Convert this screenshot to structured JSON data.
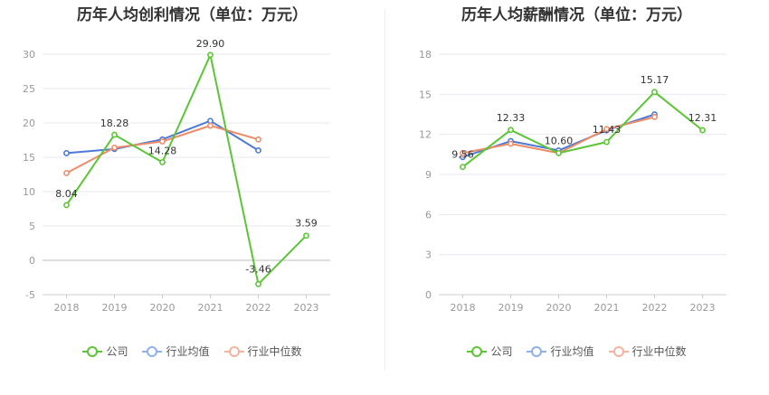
{
  "chart_data": [
    {
      "type": "line",
      "title": "历年人均创利情况（单位：万元）",
      "categories": [
        "2018",
        "2019",
        "2020",
        "2021",
        "2022",
        "2023"
      ],
      "ylim": [
        -5,
        30
      ],
      "yticks": [
        -5,
        0,
        5,
        10,
        15,
        20,
        25,
        30
      ],
      "grid": true,
      "legend": "bottom",
      "series": [
        {
          "name": "公司",
          "color": "#5cc535",
          "values": [
            8.04,
            18.28,
            14.28,
            29.9,
            -3.46,
            3.59
          ],
          "labels": [
            "8.04",
            "18.28",
            "14.28",
            "29.90",
            "-3.46",
            "3.59"
          ]
        },
        {
          "name": "行业均值",
          "color": "#4b7bd6",
          "values": [
            15.6,
            16.2,
            17.6,
            20.3,
            16.0,
            null
          ]
        },
        {
          "name": "行业中位数",
          "color": "#ef8c68",
          "values": [
            12.7,
            16.4,
            17.3,
            19.6,
            17.6,
            null
          ]
        }
      ]
    },
    {
      "type": "line",
      "title": "历年人均薪酬情况（单位：万元）",
      "categories": [
        "2018",
        "2019",
        "2020",
        "2021",
        "2022",
        "2023"
      ],
      "ylim": [
        0,
        18
      ],
      "yticks": [
        0,
        3,
        6,
        9,
        12,
        15,
        18
      ],
      "grid": true,
      "legend": "bottom",
      "series": [
        {
          "name": "公司",
          "color": "#5cc535",
          "values": [
            9.56,
            12.33,
            10.6,
            11.43,
            15.17,
            12.31
          ],
          "labels": [
            "9.56",
            "12.33",
            "10.60",
            "11.43",
            "15.17",
            "12.31"
          ]
        },
        {
          "name": "行业均值",
          "color": "#4b7bd6",
          "values": [
            10.3,
            11.5,
            10.8,
            12.3,
            13.5,
            null
          ]
        },
        {
          "name": "行业中位数",
          "color": "#ef8c68",
          "values": [
            10.6,
            11.3,
            10.6,
            12.4,
            13.3,
            null
          ]
        }
      ]
    }
  ]
}
